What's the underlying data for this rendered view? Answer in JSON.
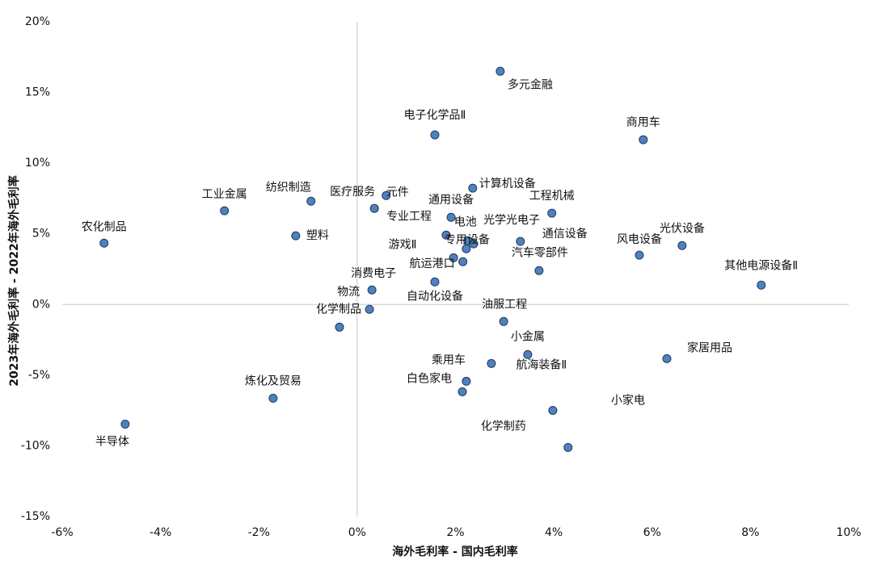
{
  "chart_data": {
    "type": "scatter",
    "x_label": "海外毛利率 - 国内毛利率",
    "y_label": "2023年海外毛利率 - 2022年海外毛利率",
    "color": "#4f81bd",
    "labels": [
      "多元金融",
      "电子化学品Ⅱ",
      "商用车",
      "计算机设备",
      "工程机械",
      "元件",
      "医疗服务",
      "纺织制造",
      "工业金属",
      "塑料",
      "农化制品",
      "通用设备",
      "专业工程",
      "电池",
      "光学光电子",
      "专用设备",
      "通信设备",
      "汽车零部件",
      "风电设备",
      "光伏设备",
      "其他电源设备Ⅱ",
      "游戏Ⅱ",
      "航运港口",
      "消费电子",
      "物流",
      "化学制品",
      "自动化设备",
      "油服工程",
      "小金属",
      "乘用车",
      "航海装备Ⅱ",
      "白色家电",
      "家居用品",
      "小家电",
      "化学制药",
      "炼化及贸易",
      "半导体"
    ],
    "x": [
      2.91,
      1.58,
      5.82,
      2.35,
      3.96,
      0.59,
      0.35,
      -0.94,
      -2.7,
      -1.25,
      -5.15,
      1.91,
      1.81,
      2.25,
      2.37,
      2.22,
      3.32,
      3.7,
      5.74,
      6.61,
      8.22,
      1.96,
      2.15,
      0.3,
      0.25,
      -0.36,
      1.58,
      2.98,
      3.47,
      2.22,
      2.73,
      2.14,
      6.3,
      3.98,
      4.29,
      -1.71,
      -4.72
    ],
    "values": [
      16.5,
      12.0,
      11.66,
      8.23,
      6.46,
      7.71,
      6.8,
      7.31,
      6.63,
      4.86,
      4.34,
      6.17,
      4.91,
      4.51,
      4.29,
      3.94,
      4.46,
      2.4,
      3.49,
      4.17,
      1.37,
      3.31,
      3.03,
      1.03,
      -0.34,
      -1.6,
      1.6,
      -1.2,
      -3.54,
      -5.43,
      -4.17,
      -6.17,
      -3.83,
      -7.49,
      -10.11,
      -6.63,
      -8.46
    ],
    "xlim": [
      -6,
      10
    ],
    "xticks": [
      {
        "value": -6,
        "label": "-6%"
      },
      {
        "value": -4,
        "label": "-4%"
      },
      {
        "value": -2,
        "label": "-2%"
      },
      {
        "value": 0,
        "label": "0%"
      },
      {
        "value": 2,
        "label": "2%"
      },
      {
        "value": 4,
        "label": "4%"
      },
      {
        "value": 6,
        "label": "6%"
      },
      {
        "value": 8,
        "label": "8%"
      },
      {
        "value": 10,
        "label": "10%"
      }
    ],
    "ylim": [
      -15,
      20
    ],
    "yticks": [
      {
        "value": -15,
        "label": "-15%"
      },
      {
        "value": -10,
        "label": "-10%"
      },
      {
        "value": -5,
        "label": "-5%"
      },
      {
        "value": 0,
        "label": "0%"
      },
      {
        "value": 5,
        "label": "5%"
      },
      {
        "value": 10,
        "label": "10%"
      },
      {
        "value": 15,
        "label": "15%"
      },
      {
        "value": 20,
        "label": "20%"
      }
    ],
    "grid": false
  }
}
